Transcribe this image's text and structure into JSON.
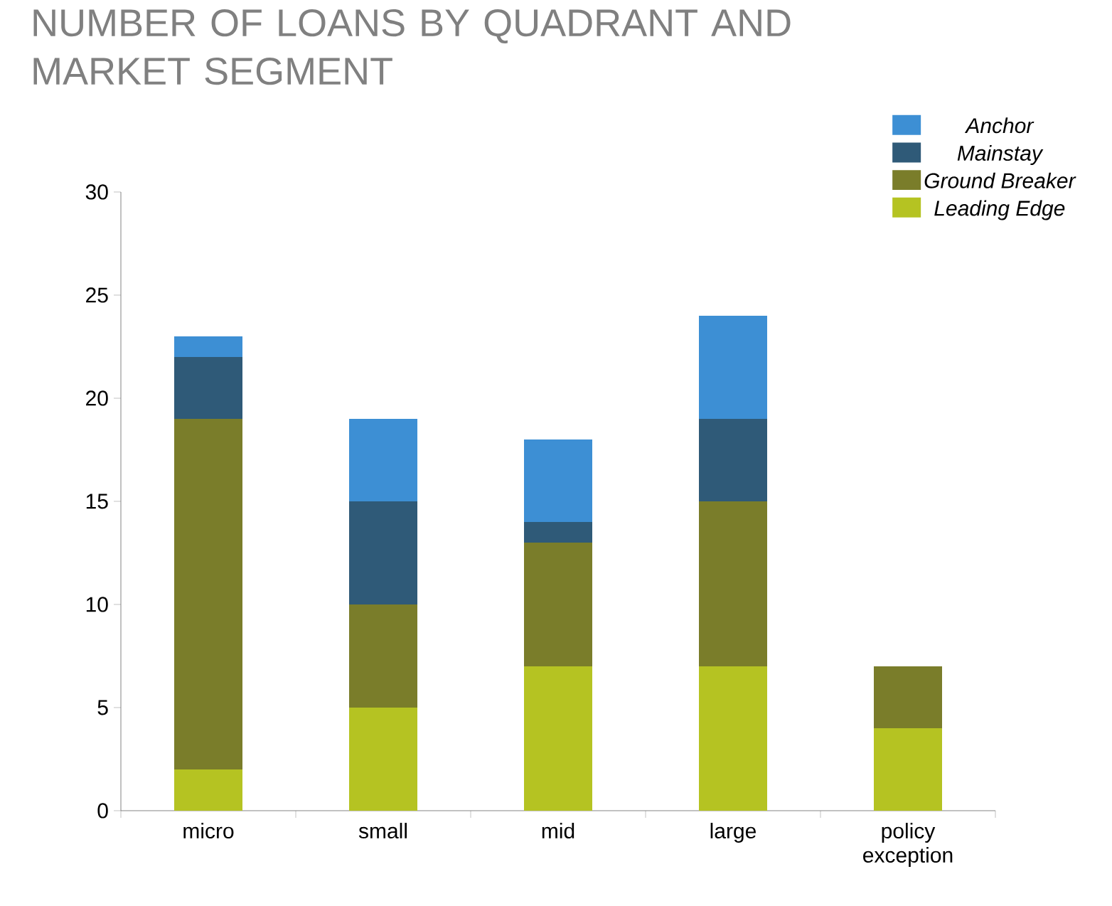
{
  "chart_data": {
    "type": "bar",
    "title": "NUMBER OF LOANS BY QUADRANT AND MARKET SEGMENT",
    "categories": [
      "micro",
      "small",
      "mid",
      "large",
      "policy exception"
    ],
    "stacked": true,
    "series": [
      {
        "name": "Leading Edge",
        "color": "#b5c322",
        "values": [
          2,
          5,
          7,
          7,
          4
        ]
      },
      {
        "name": "Ground Breaker",
        "color": "#7a7d2a",
        "values": [
          17,
          5,
          6,
          8,
          3
        ]
      },
      {
        "name": "Mainstay",
        "color": "#2f5a78",
        "values": [
          3,
          5,
          1,
          4,
          0
        ]
      },
      {
        "name": "Anchor",
        "color": "#3d8fd4",
        "values": [
          1,
          4,
          4,
          5,
          0
        ]
      }
    ],
    "ylim": [
      0,
      30
    ],
    "yticks": [
      0,
      5,
      10,
      15,
      20,
      25,
      30
    ],
    "grid": false,
    "legend": "top right"
  }
}
